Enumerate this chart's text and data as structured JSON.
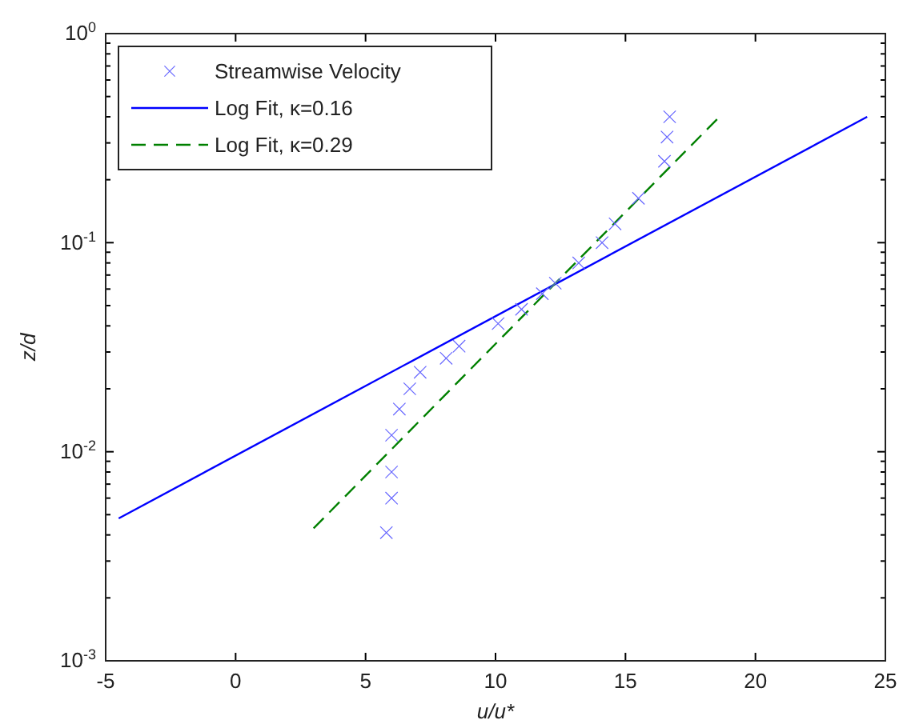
{
  "chart_data": {
    "type": "line",
    "xlabel": "u/u*",
    "ylabel": "z/d",
    "log": "y",
    "legend": "top left",
    "grid": false,
    "xlim": [
      -5,
      25
    ],
    "xticks": [
      -5,
      0,
      5,
      10,
      15,
      20,
      25
    ],
    "ylim": [
      0.001,
      1
    ],
    "yticks": [
      {
        "value": 0.001,
        "label": "10$^{-3}$"
      },
      {
        "value": 0.002,
        "label": null
      },
      {
        "value": 0.003,
        "label": null
      },
      {
        "value": 0.004,
        "label": null
      },
      {
        "value": 0.005,
        "label": null
      },
      {
        "value": 0.006,
        "label": null
      },
      {
        "value": 0.007,
        "label": null
      },
      {
        "value": 0.008,
        "label": null
      },
      {
        "value": 0.009,
        "label": null
      },
      {
        "value": 0.01,
        "label": "10$^{-2}$"
      },
      {
        "value": 0.02,
        "label": null
      },
      {
        "value": 0.03,
        "label": null
      },
      {
        "value": 0.04,
        "label": null
      },
      {
        "value": 0.05,
        "label": null
      },
      {
        "value": 0.06,
        "label": null
      },
      {
        "value": 0.07,
        "label": null
      },
      {
        "value": 0.08,
        "label": null
      },
      {
        "value": 0.09,
        "label": null
      },
      {
        "value": 0.1,
        "label": "10$^{-1}$"
      },
      {
        "value": 0.2,
        "label": null
      },
      {
        "value": 0.3,
        "label": null
      },
      {
        "value": 0.4,
        "label": null
      },
      {
        "value": 0.5,
        "label": null
      },
      {
        "value": 0.6,
        "label": null
      },
      {
        "value": 0.7,
        "label": null
      },
      {
        "value": 0.8,
        "label": null
      },
      {
        "value": 0.9,
        "label": null
      },
      {
        "value": 1,
        "label": "10$^{0}$"
      }
    ],
    "series": [
      {
        "name": "Streamwise Velocity",
        "type": "scatter",
        "marker": "cross",
        "color": "#6666ff",
        "x": [
          5.8,
          6.0,
          6.0,
          6.0,
          6.3,
          6.7,
          7.1,
          8.1,
          8.6,
          10.1,
          11.0,
          11.8,
          12.3,
          13.2,
          14.1,
          14.6,
          15.5,
          16.5,
          16.6,
          16.7
        ],
        "values": [
          0.0041,
          0.006,
          0.008,
          0.012,
          0.016,
          0.02,
          0.024,
          0.028,
          0.032,
          0.041,
          0.048,
          0.057,
          0.064,
          0.08,
          0.1,
          0.123,
          0.163,
          0.245,
          0.32,
          0.4
        ]
      },
      {
        "name": "Log Fit, κ=0.16",
        "line_style": "solid",
        "color": "#0000ff",
        "x": [
          -4.5,
          24.3
        ],
        "values": [
          0.0048,
          0.4
        ]
      },
      {
        "name": "Log Fit, κ=0.29",
        "line_style": "dashed",
        "color": "#008000",
        "x": [
          3.0,
          18.7
        ],
        "values": [
          0.0043,
          0.41
        ]
      }
    ]
  }
}
